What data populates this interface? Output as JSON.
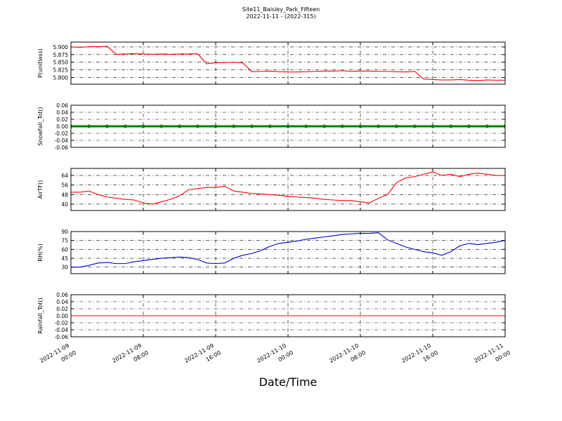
{
  "chart_data": [
    {
      "type": "line",
      "title": "Site11_Baisley_Park_Fifteen",
      "subtitle": "2022-11-11 - (2022-315)",
      "ylabel": "P(unitless)",
      "grid": true,
      "x": [
        "2022-11-09 00:00",
        "2022-11-09 01:00",
        "2022-11-09 02:00",
        "2022-11-09 03:00",
        "2022-11-09 04:00",
        "2022-11-09 05:00",
        "2022-11-09 06:00",
        "2022-11-09 07:00",
        "2022-11-09 08:00",
        "2022-11-09 09:00",
        "2022-11-09 10:00",
        "2022-11-09 11:00",
        "2022-11-09 12:00",
        "2022-11-09 13:00",
        "2022-11-09 14:00",
        "2022-11-09 15:00",
        "2022-11-09 16:00",
        "2022-11-09 17:00",
        "2022-11-09 18:00",
        "2022-11-09 19:00",
        "2022-11-09 20:00",
        "2022-11-09 21:00",
        "2022-11-09 22:00",
        "2022-11-09 23:00",
        "2022-11-10 00:00",
        "2022-11-10 01:00",
        "2022-11-10 02:00",
        "2022-11-10 03:00",
        "2022-11-10 04:00",
        "2022-11-10 05:00",
        "2022-11-10 06:00",
        "2022-11-10 07:00",
        "2022-11-10 08:00",
        "2022-11-10 09:00",
        "2022-11-10 10:00",
        "2022-11-10 11:00",
        "2022-11-10 12:00",
        "2022-11-10 13:00",
        "2022-11-10 14:00",
        "2022-11-10 15:00",
        "2022-11-10 16:00",
        "2022-11-10 17:00",
        "2022-11-10 18:00",
        "2022-11-10 19:00",
        "2022-11-10 20:00",
        "2022-11-10 21:00",
        "2022-11-10 22:00",
        "2022-11-10 23:00",
        "2022-11-11 00:00"
      ],
      "series": [
        {
          "color": "#ff0000",
          "values": [
            5.9,
            5.899,
            5.901,
            5.901,
            5.902,
            5.876,
            5.877,
            5.878,
            5.877,
            5.876,
            5.877,
            5.876,
            5.877,
            5.877,
            5.878,
            5.845,
            5.848,
            5.849,
            5.85,
            5.848,
            5.819,
            5.82,
            5.821,
            5.819,
            5.818,
            5.818,
            5.819,
            5.82,
            5.821,
            5.821,
            5.822,
            5.82,
            5.821,
            5.821,
            5.82,
            5.82,
            5.819,
            5.818,
            5.82,
            5.795,
            5.793,
            5.792,
            5.792,
            5.793,
            5.791,
            5.79,
            5.792,
            5.791,
            5.791
          ]
        }
      ],
      "xlim": [
        "2022-11-09 00:00",
        "2022-11-11 00:00"
      ],
      "xticks": [
        "2022-11-09 00:00",
        "2022-11-09 08:00",
        "2022-11-09 16:00",
        "2022-11-10 00:00",
        "2022-11-10 08:00",
        "2022-11-10 16:00",
        "2022-11-11 00:00"
      ],
      "ylim": [
        5.778,
        5.916
      ],
      "yticks": [
        {
          "value": 5.8,
          "label": "5.800"
        },
        {
          "value": 5.825,
          "label": "5.825"
        },
        {
          "value": 5.85,
          "label": "5.850"
        },
        {
          "value": 5.875,
          "label": "5.875"
        },
        {
          "value": 5.9,
          "label": "5.900"
        }
      ]
    },
    {
      "type": "line",
      "ylabel": "Snowfall_Tot()",
      "grid": true,
      "markers": true,
      "x": [
        "2022-11-09 00:00",
        "2022-11-09 02:00",
        "2022-11-09 04:00",
        "2022-11-09 06:00",
        "2022-11-09 08:00",
        "2022-11-09 10:00",
        "2022-11-09 12:00",
        "2022-11-09 14:00",
        "2022-11-09 16:00",
        "2022-11-09 18:00",
        "2022-11-09 20:00",
        "2022-11-09 22:00",
        "2022-11-10 00:00",
        "2022-11-10 02:00",
        "2022-11-10 04:00",
        "2022-11-10 06:00",
        "2022-11-10 08:00",
        "2022-11-10 10:00",
        "2022-11-10 12:00",
        "2022-11-10 14:00",
        "2022-11-10 16:00",
        "2022-11-10 18:00",
        "2022-11-10 20:00",
        "2022-11-10 22:00",
        "2022-11-11 00:00"
      ],
      "series": [
        {
          "color": "#008000",
          "values": [
            0,
            0,
            0,
            0,
            0,
            0,
            0,
            0,
            0,
            0,
            0,
            0,
            0,
            0,
            0,
            0,
            0,
            0,
            0,
            0,
            0,
            0,
            0,
            0,
            0
          ]
        }
      ],
      "xlim": [
        "2022-11-09 00:00",
        "2022-11-11 00:00"
      ],
      "xticks": [
        "2022-11-09 00:00",
        "2022-11-09 08:00",
        "2022-11-09 16:00",
        "2022-11-10 00:00",
        "2022-11-10 08:00",
        "2022-11-10 16:00",
        "2022-11-11 00:00"
      ],
      "ylim": [
        -0.06,
        0.06
      ],
      "yticks": [
        {
          "value": -0.06,
          "label": "-0.06"
        },
        {
          "value": -0.04,
          "label": "-0.04"
        },
        {
          "value": -0.02,
          "label": "-0.02"
        },
        {
          "value": 0,
          "label": "0.00"
        },
        0.02,
        0.04,
        0.06
      ]
    },
    {
      "type": "line",
      "ylabel": "AirTF()",
      "grid": true,
      "x": [
        "2022-11-09 00:00",
        "2022-11-09 01:00",
        "2022-11-09 02:00",
        "2022-11-09 03:00",
        "2022-11-09 04:00",
        "2022-11-09 05:00",
        "2022-11-09 06:00",
        "2022-11-09 07:00",
        "2022-11-09 08:00",
        "2022-11-09 09:00",
        "2022-11-09 10:00",
        "2022-11-09 11:00",
        "2022-11-09 12:00",
        "2022-11-09 13:00",
        "2022-11-09 14:00",
        "2022-11-09 15:00",
        "2022-11-09 16:00",
        "2022-11-09 17:00",
        "2022-11-09 18:00",
        "2022-11-09 19:00",
        "2022-11-09 20:00",
        "2022-11-09 21:00",
        "2022-11-09 22:00",
        "2022-11-09 23:00",
        "2022-11-10 00:00",
        "2022-11-10 01:00",
        "2022-11-10 02:00",
        "2022-11-10 03:00",
        "2022-11-10 04:00",
        "2022-11-10 05:00",
        "2022-11-10 06:00",
        "2022-11-10 07:00",
        "2022-11-10 08:00",
        "2022-11-10 09:00",
        "2022-11-10 10:00",
        "2022-11-10 11:00",
        "2022-11-10 12:00",
        "2022-11-10 13:00",
        "2022-11-10 14:00",
        "2022-11-10 15:00",
        "2022-11-10 16:00",
        "2022-11-10 17:00",
        "2022-11-10 18:00",
        "2022-11-10 19:00",
        "2022-11-10 20:00",
        "2022-11-10 21:00",
        "2022-11-10 22:00",
        "2022-11-10 23:00",
        "2022-11-11 00:00"
      ],
      "series": [
        {
          "color": "#ff0000",
          "values": [
            50,
            50,
            51,
            48,
            46,
            45,
            44,
            43.5,
            41,
            40,
            42,
            44,
            47,
            52,
            53,
            54,
            54,
            55,
            51,
            50,
            49,
            48.5,
            48,
            47.5,
            46.5,
            46,
            45.5,
            45,
            44,
            43.5,
            43,
            43,
            42,
            41,
            45,
            48,
            58,
            62,
            63,
            65,
            67,
            64,
            65,
            63,
            65,
            66,
            65,
            64,
            64
          ]
        }
      ],
      "xlim": [
        "2022-11-09 00:00",
        "2022-11-11 00:00"
      ],
      "xticks": [
        "2022-11-09 00:00",
        "2022-11-09 08:00",
        "2022-11-09 16:00",
        "2022-11-10 00:00",
        "2022-11-10 08:00",
        "2022-11-10 16:00",
        "2022-11-11 00:00"
      ],
      "ylim": [
        34.7,
        69.9
      ],
      "yticks": [
        40,
        48,
        56,
        64
      ]
    },
    {
      "type": "line",
      "ylabel": "RH(%)",
      "grid": true,
      "x": [
        "2022-11-09 00:00",
        "2022-11-09 01:00",
        "2022-11-09 02:00",
        "2022-11-09 03:00",
        "2022-11-09 04:00",
        "2022-11-09 05:00",
        "2022-11-09 06:00",
        "2022-11-09 07:00",
        "2022-11-09 08:00",
        "2022-11-09 09:00",
        "2022-11-09 10:00",
        "2022-11-09 11:00",
        "2022-11-09 12:00",
        "2022-11-09 13:00",
        "2022-11-09 14:00",
        "2022-11-09 15:00",
        "2022-11-09 16:00",
        "2022-11-09 17:00",
        "2022-11-09 18:00",
        "2022-11-09 19:00",
        "2022-11-09 20:00",
        "2022-11-09 21:00",
        "2022-11-09 22:00",
        "2022-11-09 23:00",
        "2022-11-10 00:00",
        "2022-11-10 01:00",
        "2022-11-10 02:00",
        "2022-11-10 03:00",
        "2022-11-10 04:00",
        "2022-11-10 05:00",
        "2022-11-10 06:00",
        "2022-11-10 07:00",
        "2022-11-10 08:00",
        "2022-11-10 09:00",
        "2022-11-10 10:00",
        "2022-11-10 11:00",
        "2022-11-10 12:00",
        "2022-11-10 13:00",
        "2022-11-10 14:00",
        "2022-11-10 15:00",
        "2022-11-10 16:00",
        "2022-11-10 17:00",
        "2022-11-10 18:00",
        "2022-11-10 19:00",
        "2022-11-10 20:00",
        "2022-11-10 21:00",
        "2022-11-10 22:00",
        "2022-11-10 23:00",
        "2022-11-11 00:00"
      ],
      "series": [
        {
          "color": "#0000cc",
          "values": [
            30,
            30,
            33,
            37,
            38,
            36,
            36,
            39,
            41,
            43,
            45,
            46,
            47,
            46,
            43,
            37,
            36,
            37,
            45,
            50,
            53,
            58,
            65,
            70,
            72,
            74,
            77,
            79,
            81,
            83,
            85,
            86,
            87,
            87,
            88,
            76,
            70,
            64,
            60,
            56,
            54,
            50,
            56,
            66,
            70,
            68,
            70,
            72,
            75
          ]
        }
      ],
      "xlim": [
        "2022-11-09 00:00",
        "2022-11-11 00:00"
      ],
      "xticks": [
        "2022-11-09 00:00",
        "2022-11-09 08:00",
        "2022-11-09 16:00",
        "2022-11-10 00:00",
        "2022-11-10 08:00",
        "2022-11-10 16:00",
        "2022-11-11 00:00"
      ],
      "ylim": [
        19,
        90
      ],
      "yticks": [
        30,
        45,
        60,
        75,
        90
      ]
    },
    {
      "type": "line",
      "ylabel": "Rainfall_Tot()",
      "xlabel": "Date/Time",
      "grid": true,
      "x": [
        "2022-11-09 00:00",
        "2022-11-09 02:00",
        "2022-11-09 04:00",
        "2022-11-09 06:00",
        "2022-11-09 08:00",
        "2022-11-09 10:00",
        "2022-11-09 12:00",
        "2022-11-09 14:00",
        "2022-11-09 16:00",
        "2022-11-09 18:00",
        "2022-11-09 20:00",
        "2022-11-09 22:00",
        "2022-11-10 00:00",
        "2022-11-10 02:00",
        "2022-11-10 04:00",
        "2022-11-10 06:00",
        "2022-11-10 08:00",
        "2022-11-10 10:00",
        "2022-11-10 12:00",
        "2022-11-10 14:00",
        "2022-11-10 16:00",
        "2022-11-10 18:00",
        "2022-11-10 20:00",
        "2022-11-10 22:00",
        "2022-11-11 00:00"
      ],
      "series": [
        {
          "color": "#ff0000",
          "values": [
            0,
            0,
            0,
            0,
            0,
            0,
            0,
            0,
            0,
            0,
            0,
            0,
            0,
            0,
            0,
            0,
            0,
            0,
            0,
            0,
            0,
            0,
            0,
            0,
            0
          ]
        }
      ],
      "xlim": [
        "2022-11-09 00:00",
        "2022-11-11 00:00"
      ],
      "xticks": [
        {
          "value": "2022-11-09 00:00",
          "label": [
            "2022-11-09",
            "00:00"
          ]
        },
        {
          "value": "2022-11-09 08:00",
          "label": [
            "2022-11-09",
            "08:00"
          ]
        },
        {
          "value": "2022-11-09 16:00",
          "label": [
            "2022-11-09",
            "16:00"
          ]
        },
        {
          "value": "2022-11-10 00:00",
          "label": [
            "2022-11-10",
            "00:00"
          ]
        },
        {
          "value": "2022-11-10 08:00",
          "label": [
            "2022-11-10",
            "08:00"
          ]
        },
        {
          "value": "2022-11-10 16:00",
          "label": [
            "2022-11-10",
            "16:00"
          ]
        },
        {
          "value": "2022-11-11 00:00",
          "label": [
            "2022-11-11",
            "00:00"
          ]
        }
      ],
      "ylim": [
        -0.06,
        0.06
      ],
      "yticks": [
        {
          "value": -0.06,
          "label": "-0.06"
        },
        {
          "value": -0.04,
          "label": "-0.04"
        },
        {
          "value": -0.02,
          "label": "-0.02"
        },
        {
          "value": 0,
          "label": "0.00"
        },
        0.02,
        0.04,
        0.06
      ]
    }
  ]
}
